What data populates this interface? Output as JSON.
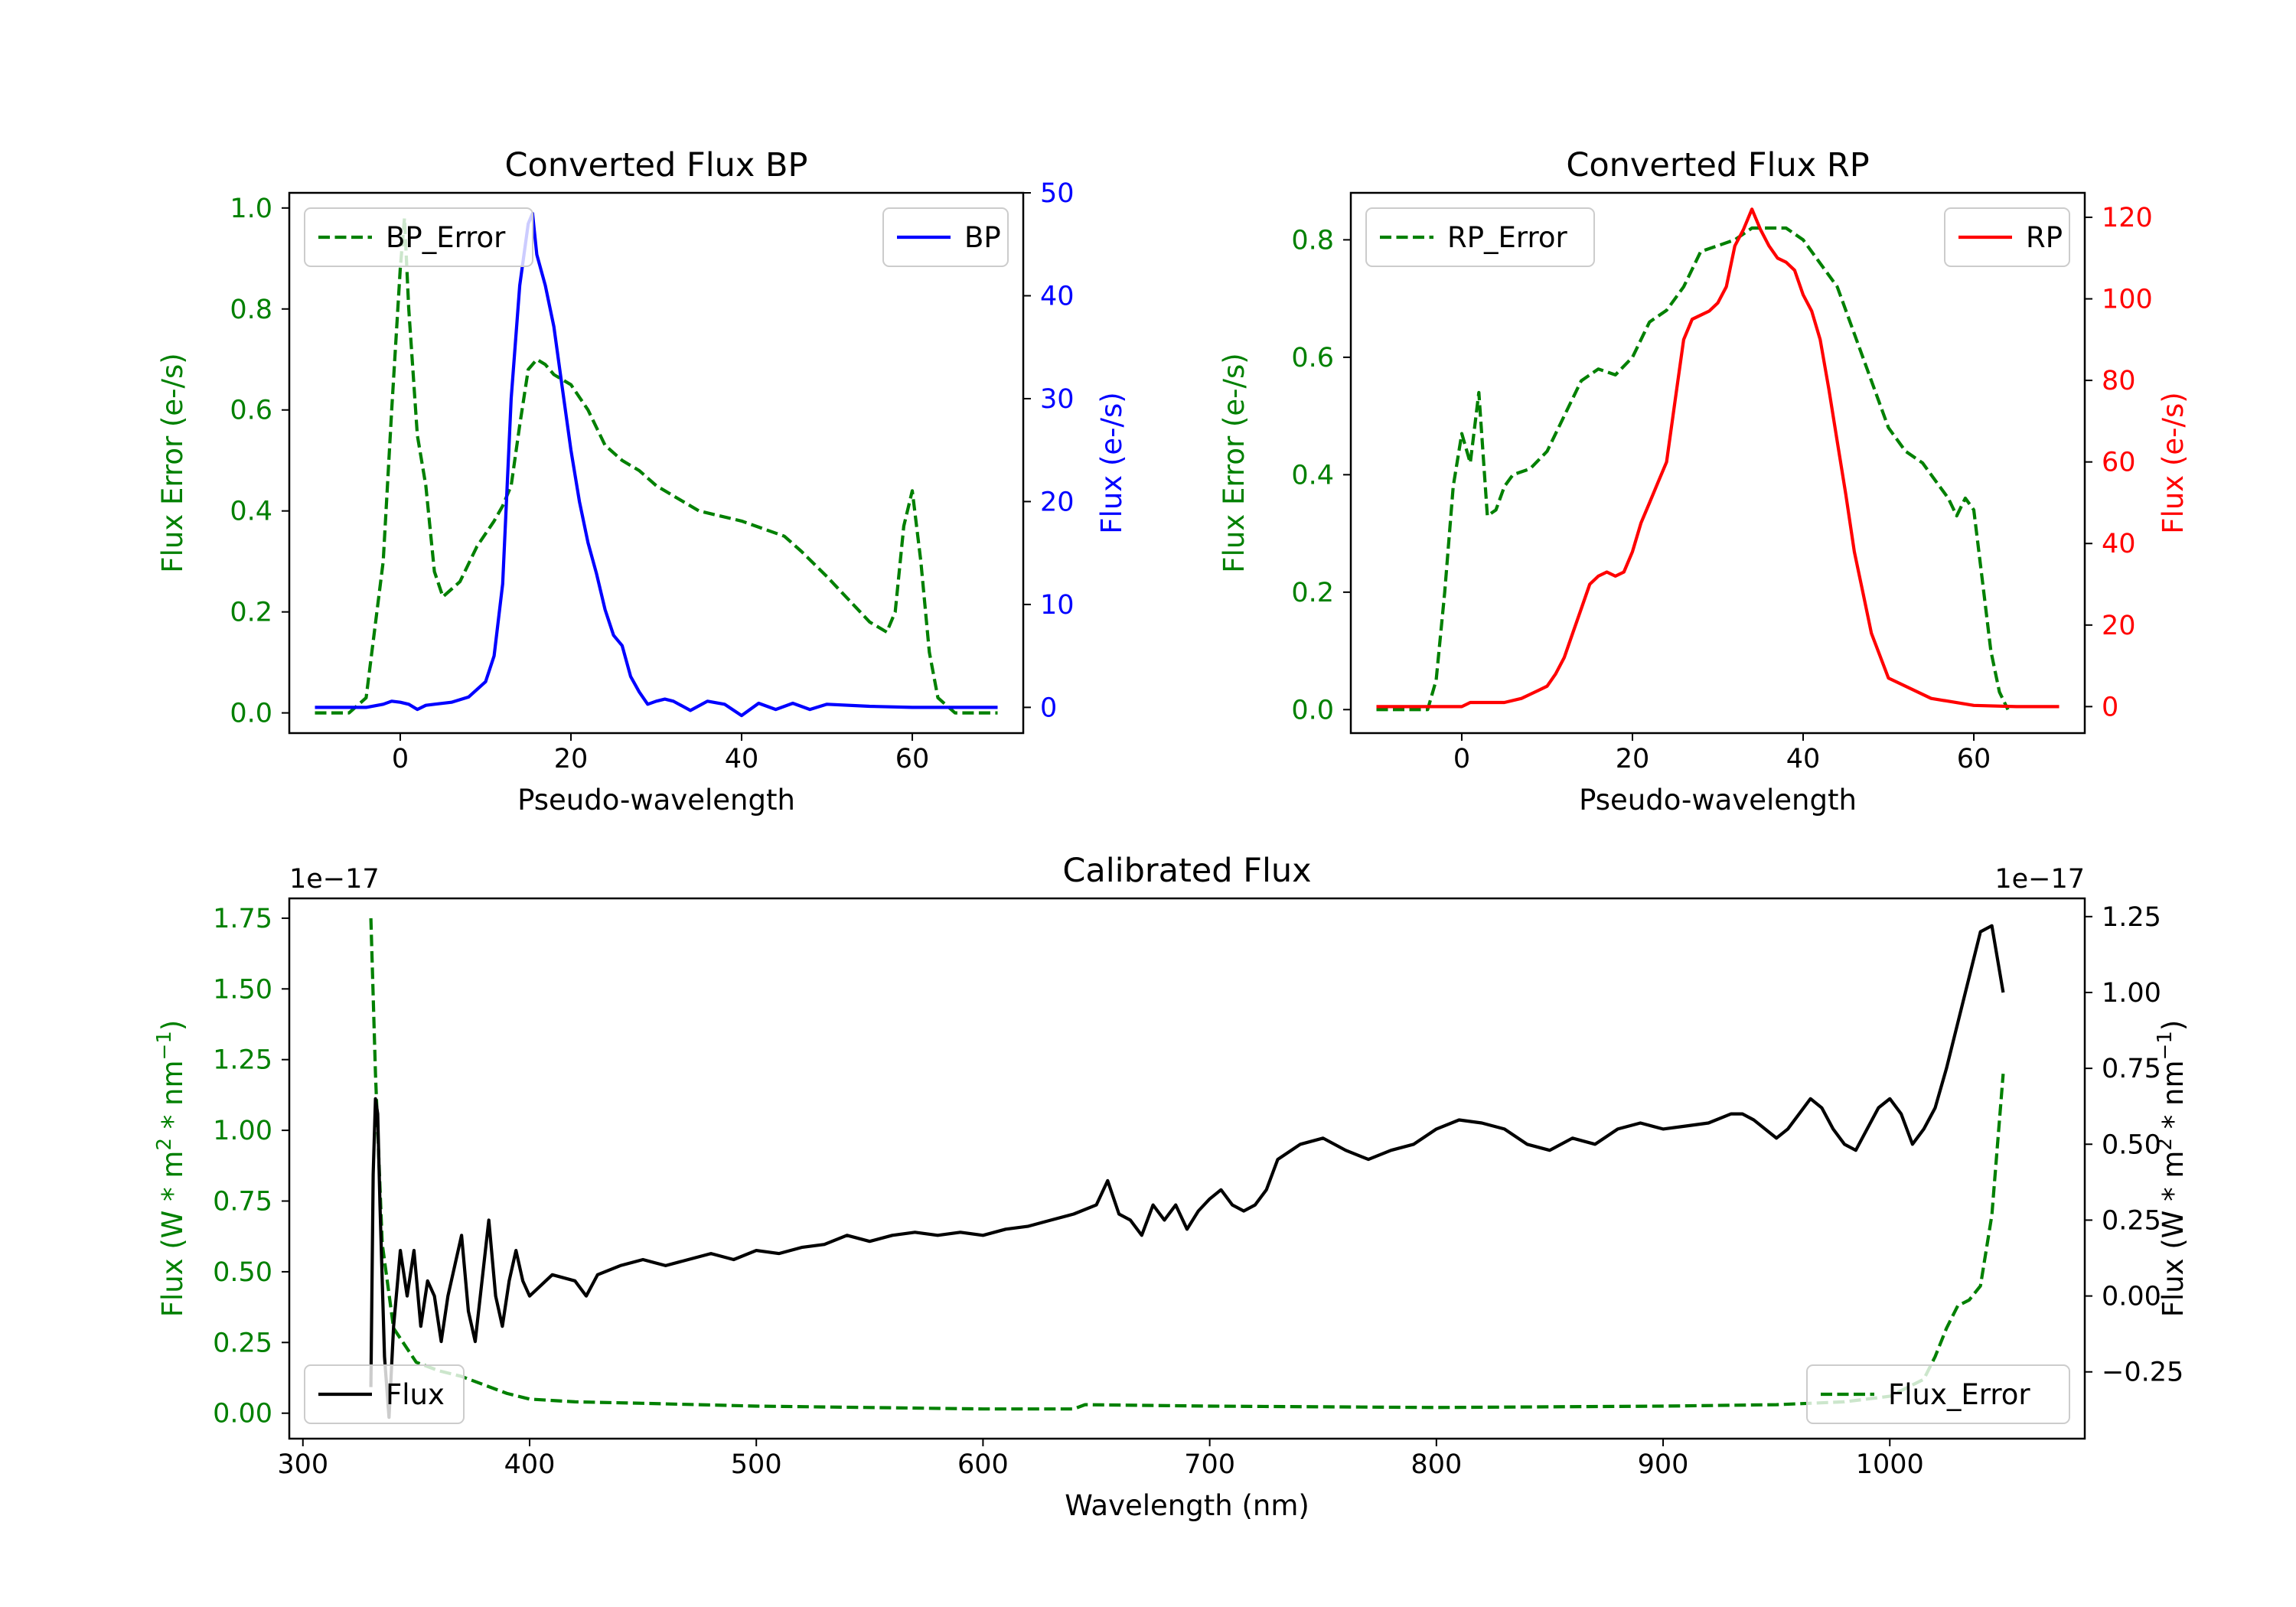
{
  "chart_data": [
    {
      "type": "line",
      "title": "Converted Flux BP",
      "xlabel": "Pseudo-wavelength",
      "ylabel_left": "Flux Error (e-/s)",
      "ylabel_right": "Flux (e-/s)",
      "xlim": [
        -13,
        73
      ],
      "ylim_left": [
        -0.04,
        1.03
      ],
      "ylim_right": [
        -2.5,
        50.0
      ],
      "xticks": [
        0,
        20,
        40,
        60
      ],
      "yticks_left": [
        0.0,
        0.2,
        0.4,
        0.6,
        0.8,
        1.0
      ],
      "yticks_right": [
        0,
        10,
        20,
        30,
        40,
        50
      ],
      "colors": {
        "left": "#008000",
        "right": "#0000ff"
      },
      "legend": [
        {
          "label": "BP_Error",
          "position": "upper left"
        },
        {
          "label": "BP",
          "position": "upper right"
        }
      ],
      "series": [
        {
          "name": "BP_Error",
          "axis": "left",
          "style": "dashed",
          "color": "#008000",
          "x": [
            -10,
            -6,
            -4,
            -2,
            -1,
            0,
            0.5,
            1,
            2,
            3,
            4,
            5,
            7,
            9,
            11,
            12,
            13,
            14,
            15,
            16,
            17,
            18,
            20,
            22,
            24,
            26,
            28,
            30,
            35,
            40,
            45,
            47,
            50,
            55,
            57,
            58,
            59,
            60,
            61,
            62,
            63,
            65,
            70
          ],
          "y": [
            0.0,
            0.0,
            0.03,
            0.3,
            0.6,
            0.88,
            0.98,
            0.8,
            0.55,
            0.45,
            0.28,
            0.23,
            0.26,
            0.33,
            0.38,
            0.41,
            0.45,
            0.57,
            0.68,
            0.7,
            0.69,
            0.67,
            0.65,
            0.6,
            0.53,
            0.5,
            0.48,
            0.45,
            0.4,
            0.38,
            0.35,
            0.32,
            0.27,
            0.18,
            0.16,
            0.2,
            0.37,
            0.44,
            0.3,
            0.12,
            0.03,
            0.0,
            0.0
          ]
        },
        {
          "name": "BP",
          "axis": "right",
          "style": "solid",
          "color": "#0000ff",
          "x": [
            -10,
            -4,
            -2,
            -1,
            0,
            1,
            2,
            3,
            4,
            6,
            8,
            10,
            11,
            12,
            13,
            14,
            15,
            15.5,
            16,
            17,
            18,
            19,
            20,
            21,
            22,
            23,
            24,
            25,
            26,
            27,
            28,
            29,
            30,
            31,
            32,
            34,
            36,
            38,
            40,
            42,
            44,
            46,
            48,
            50,
            55,
            60,
            70
          ],
          "y": [
            0,
            0,
            0.3,
            0.6,
            0.5,
            0.3,
            -0.2,
            0.2,
            0.3,
            0.5,
            1.0,
            2.5,
            5.0,
            12.0,
            30.0,
            41.0,
            47.0,
            48.0,
            44.0,
            41.0,
            37.0,
            31.0,
            25.0,
            20.0,
            16.0,
            13.0,
            9.5,
            7.0,
            6.0,
            3.0,
            1.5,
            0.3,
            0.6,
            0.8,
            0.6,
            -0.3,
            0.6,
            0.3,
            -0.8,
            0.4,
            -0.2,
            0.4,
            -0.2,
            0.3,
            0.1,
            0.0,
            0.0
          ]
        }
      ]
    },
    {
      "type": "line",
      "title": "Converted Flux RP",
      "xlabel": "Pseudo-wavelength",
      "ylabel_left": "Flux Error (e-/s)",
      "ylabel_right": "Flux (e-/s)",
      "xlim": [
        -13,
        73
      ],
      "ylim_left": [
        -0.04,
        0.88
      ],
      "ylim_right": [
        -6.5,
        126.0
      ],
      "xticks": [
        0,
        20,
        40,
        60
      ],
      "yticks_left": [
        0.0,
        0.2,
        0.4,
        0.6,
        0.8
      ],
      "yticks_right": [
        0,
        20,
        40,
        60,
        80,
        100,
        120
      ],
      "colors": {
        "left": "#008000",
        "right": "#ff0000"
      },
      "legend": [
        {
          "label": "RP_Error",
          "position": "upper left"
        },
        {
          "label": "RP",
          "position": "upper right"
        }
      ],
      "series": [
        {
          "name": "RP_Error",
          "axis": "left",
          "style": "dashed",
          "color": "#008000",
          "x": [
            -10,
            -4,
            -3,
            -2,
            -1,
            0,
            1,
            2,
            3,
            4,
            5,
            6,
            8,
            10,
            12,
            14,
            16,
            18,
            20,
            22,
            24,
            26,
            28,
            30,
            32,
            34,
            36,
            38,
            40,
            42,
            44,
            46,
            48,
            50,
            52,
            54,
            56,
            57,
            58,
            59,
            60,
            61,
            62,
            63,
            64
          ],
          "y": [
            0.0,
            0.0,
            0.05,
            0.2,
            0.38,
            0.47,
            0.42,
            0.54,
            0.33,
            0.34,
            0.38,
            0.4,
            0.41,
            0.44,
            0.5,
            0.56,
            0.58,
            0.57,
            0.6,
            0.66,
            0.68,
            0.72,
            0.78,
            0.79,
            0.8,
            0.82,
            0.82,
            0.82,
            0.8,
            0.76,
            0.72,
            0.64,
            0.56,
            0.48,
            0.44,
            0.42,
            0.38,
            0.36,
            0.33,
            0.36,
            0.34,
            0.22,
            0.1,
            0.03,
            0.0
          ]
        },
        {
          "name": "RP",
          "axis": "right",
          "style": "solid",
          "color": "#ff0000",
          "x": [
            -10,
            0,
            1,
            3,
            5,
            7,
            8,
            9,
            10,
            11,
            12,
            13,
            14,
            15,
            16,
            17,
            18,
            19,
            20,
            21,
            22,
            23,
            24,
            25,
            26,
            27,
            28,
            29,
            30,
            31,
            32,
            33,
            34,
            35,
            36,
            37,
            38,
            39,
            40,
            41,
            42,
            43,
            44,
            45,
            46,
            47,
            48,
            50,
            55,
            60,
            65,
            70
          ],
          "y": [
            0,
            0,
            1,
            1,
            1,
            2,
            3,
            4,
            5,
            8,
            12,
            18,
            24,
            30,
            32,
            33,
            32,
            33,
            38,
            45,
            50,
            55,
            60,
            75,
            90,
            95,
            96,
            97,
            99,
            103,
            113,
            117,
            122,
            117,
            113,
            110,
            109,
            107,
            101,
            97,
            90,
            78,
            65,
            52,
            38,
            28,
            18,
            7,
            2,
            0.3,
            0,
            0
          ]
        }
      ]
    },
    {
      "type": "line",
      "title": "Calibrated Flux",
      "xlabel": "Wavelength (nm)",
      "ylabel_left": "Flux (W * m$^2$ * nm$^{-1}$)",
      "ylabel_right": "Flux (W * m$^2$ * nm$^{-1}$)",
      "offset_left": "1e−17",
      "offset_right": "1e−17",
      "xlim": [
        294,
        1086
      ],
      "ylim_left": [
        -0.09,
        1.82
      ],
      "ylim_right": [
        -0.47,
        1.31
      ],
      "xticks": [
        300,
        400,
        500,
        600,
        700,
        800,
        900,
        1000
      ],
      "yticks_left": [
        0.0,
        0.25,
        0.5,
        0.75,
        1.0,
        1.25,
        1.5,
        1.75
      ],
      "yticks_right": [
        -0.25,
        0.0,
        0.25,
        0.5,
        0.75,
        1.0,
        1.25
      ],
      "colors": {
        "left": "#008000",
        "right": "#000000"
      },
      "legend": [
        {
          "label": "Flux",
          "position": "lower left"
        },
        {
          "label": "Flux_Error",
          "position": "lower right"
        }
      ],
      "series": [
        {
          "name": "Flux_Error",
          "axis": "left",
          "style": "dashed",
          "color": "#008000",
          "x": [
            330,
            332,
            335,
            340,
            350,
            360,
            370,
            380,
            390,
            400,
            420,
            450,
            500,
            550,
            600,
            640,
            645,
            700,
            800,
            900,
            950,
            980,
            1000,
            1015,
            1020,
            1025,
            1030,
            1035,
            1040,
            1045,
            1050
          ],
          "y": [
            1.75,
            1.2,
            0.6,
            0.3,
            0.18,
            0.15,
            0.13,
            0.1,
            0.07,
            0.05,
            0.04,
            0.035,
            0.025,
            0.02,
            0.015,
            0.015,
            0.03,
            0.025,
            0.02,
            0.025,
            0.03,
            0.04,
            0.06,
            0.12,
            0.2,
            0.3,
            0.38,
            0.4,
            0.45,
            0.7,
            1.2
          ]
        },
        {
          "name": "Flux",
          "axis": "right",
          "style": "solid",
          "color": "#000000",
          "x": [
            330,
            331,
            332,
            333,
            334,
            336,
            338,
            340,
            343,
            346,
            349,
            352,
            355,
            358,
            361,
            364,
            367,
            370,
            373,
            376,
            379,
            382,
            385,
            388,
            391,
            394,
            397,
            400,
            410,
            420,
            425,
            430,
            440,
            450,
            460,
            470,
            480,
            490,
            500,
            510,
            520,
            530,
            540,
            550,
            560,
            570,
            580,
            590,
            600,
            610,
            620,
            630,
            640,
            650,
            655,
            660,
            665,
            670,
            675,
            680,
            685,
            690,
            695,
            700,
            705,
            710,
            715,
            720,
            725,
            730,
            740,
            750,
            760,
            770,
            780,
            790,
            800,
            810,
            820,
            830,
            840,
            850,
            860,
            870,
            880,
            890,
            900,
            910,
            920,
            930,
            935,
            940,
            945,
            950,
            955,
            960,
            965,
            970,
            975,
            980,
            985,
            990,
            995,
            1000,
            1005,
            1010,
            1015,
            1020,
            1025,
            1030,
            1035,
            1040,
            1045,
            1050
          ],
          "y": [
            -0.3,
            0.4,
            0.65,
            0.6,
            0.3,
            -0.2,
            -0.4,
            -0.1,
            0.15,
            0.0,
            0.15,
            -0.1,
            0.05,
            0.0,
            -0.15,
            0.0,
            0.1,
            0.2,
            -0.05,
            -0.15,
            0.05,
            0.25,
            0.0,
            -0.1,
            0.05,
            0.15,
            0.05,
            0.0,
            0.07,
            0.05,
            0.0,
            0.07,
            0.1,
            0.12,
            0.1,
            0.12,
            0.14,
            0.12,
            0.15,
            0.14,
            0.16,
            0.17,
            0.2,
            0.18,
            0.2,
            0.21,
            0.2,
            0.21,
            0.2,
            0.22,
            0.23,
            0.25,
            0.27,
            0.3,
            0.38,
            0.27,
            0.25,
            0.2,
            0.3,
            0.25,
            0.3,
            0.22,
            0.28,
            0.32,
            0.35,
            0.3,
            0.28,
            0.3,
            0.35,
            0.45,
            0.5,
            0.52,
            0.48,
            0.45,
            0.48,
            0.5,
            0.55,
            0.58,
            0.57,
            0.55,
            0.5,
            0.48,
            0.52,
            0.5,
            0.55,
            0.57,
            0.55,
            0.56,
            0.57,
            0.6,
            0.6,
            0.58,
            0.55,
            0.52,
            0.55,
            0.6,
            0.65,
            0.62,
            0.55,
            0.5,
            0.48,
            0.55,
            0.62,
            0.65,
            0.6,
            0.5,
            0.55,
            0.62,
            0.75,
            0.9,
            1.05,
            1.2,
            1.22,
            1.0
          ]
        }
      ]
    }
  ]
}
